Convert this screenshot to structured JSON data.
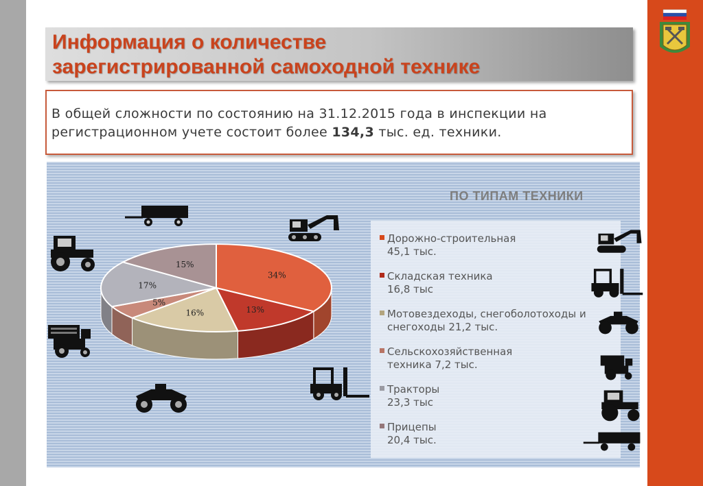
{
  "title": {
    "line1": "Информация о количестве",
    "line2": "зарегистрированной самоходной технике"
  },
  "info": {
    "text_before": "В общей сложности по состоянию на 31.12.2015 года в инспекции на регистрационном учете  состоит  более ",
    "bold_value": "134,3",
    "text_after": "  тыс.  ед. техники."
  },
  "chart_data": {
    "type": "pie",
    "title": "ПО ТИПАМ ТЕХНИКИ",
    "slices": [
      {
        "label": "Дорожно-строительная",
        "value": 34,
        "color": "#e0603e"
      },
      {
        "label": "Складская техника",
        "value": 13,
        "color": "#c0392b"
      },
      {
        "label": "Мотовездеходы, снегоболотоходы и снегоходы",
        "value": 16,
        "color": "#d9caa6"
      },
      {
        "label": "Сельскохозяйственная техника",
        "value": 5,
        "color": "#c8897a"
      },
      {
        "label": "Тракторы",
        "value": 17,
        "color": "#b3b3bb"
      },
      {
        "label": "Прицепы",
        "value": 15,
        "color": "#a89294"
      }
    ],
    "data_labels": [
      "34%",
      "13%",
      "16%",
      "5%",
      "17%",
      "15%"
    ],
    "legend": [
      {
        "line1": "Дорожно-строительная",
        "line2": "45,1 тыс.",
        "color": "#d7491b"
      },
      {
        "line1": "Складская техника",
        "line2": "16,8 тыс",
        "color": "#b02a1a"
      },
      {
        "line1": "Мотовездеходы, снегоболотоходы и",
        "line2": "снегоходы 21,2 тыс.",
        "color": "#b3a57f"
      },
      {
        "line1": "Сельскохозяйственная",
        "line2": "техника 7,2 тыс.",
        "color": "#b87565"
      },
      {
        "line1": "Тракторы",
        "line2": "23,3 тыс",
        "color": "#9a9aa2"
      },
      {
        "line1": "Прицепы",
        "line2": "20,4 тыс.",
        "color": "#957779"
      }
    ],
    "legend_position": "right"
  },
  "icons": {
    "emblem": "coat-of-arms-icon",
    "flag": "russian-flag-icon",
    "vehicles": [
      "trailer-icon",
      "excavator-icon",
      "tractor-icon",
      "combine-harvester-icon",
      "atv-icon",
      "forklift-icon"
    ]
  },
  "colors": {
    "accent": "#d7491b",
    "title_text": "#c9431d",
    "sidebar_gray": "#a8a8a8"
  }
}
